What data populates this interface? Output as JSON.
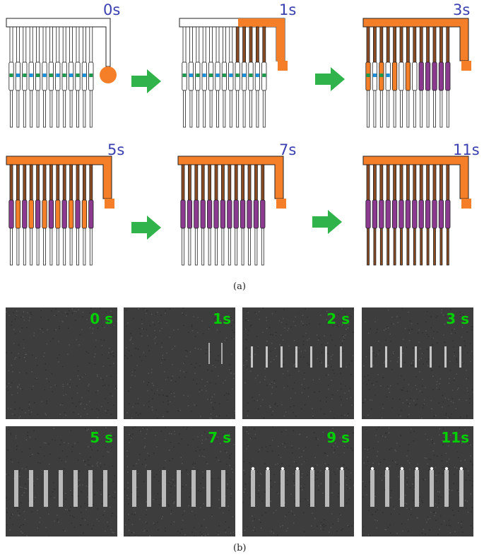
{
  "part_a": {
    "caption": "(a)",
    "time_labels": [
      "0s",
      "1s",
      "3s",
      "5s",
      "7s",
      "11s"
    ]
  },
  "part_b": {
    "caption": "(b)",
    "time_labels": [
      "0 s",
      "1s",
      "2 s",
      "3 s",
      "5 s",
      "7 s",
      "9 s",
      "11s"
    ]
  },
  "colors": {
    "orange": "#f57f29",
    "purple": "#8b3a8f",
    "brown": "#8a4a22",
    "blue": "#1a8fd9",
    "green_marker": "#1a9a4a",
    "arrow_green": "#2fb34a",
    "time_label": "#3a3fb0",
    "photo_label": "#00d000"
  }
}
